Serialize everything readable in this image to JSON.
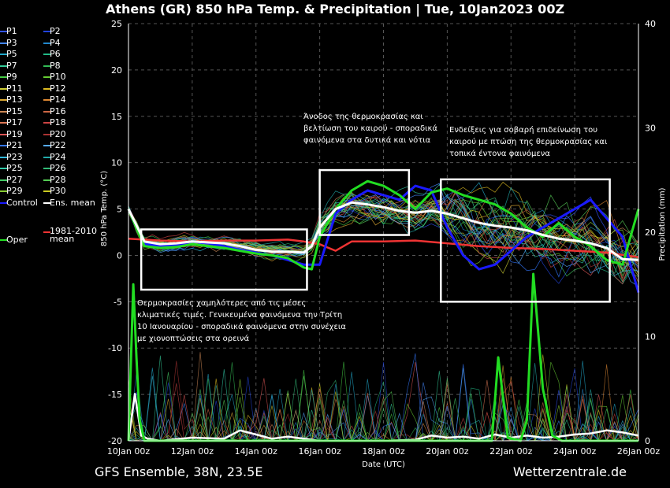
{
  "title": "Athens  (GR)  850 hPa Temp. & Precipitation | Tue, 10Jan2023 00Z",
  "footer": {
    "left": "GFS Ensemble, 38N, 23.5E",
    "right": "Wetterzentrale.de"
  },
  "colors": {
    "background": "#000000",
    "control": "#1a1aff",
    "ens_mean": "#ffffff",
    "oper": "#22dd22",
    "climate_mean": "#ee3333",
    "box": "#ffffff"
  },
  "legend": [
    {
      "label": "P1",
      "color": "#3355ff"
    },
    {
      "label": "P2",
      "color": "#2244dd"
    },
    {
      "label": "P3",
      "color": "#4488ff"
    },
    {
      "label": "P4",
      "color": "#2288cc"
    },
    {
      "label": "P5",
      "color": "#22aacc"
    },
    {
      "label": "P6",
      "color": "#22bb88"
    },
    {
      "label": "P7",
      "color": "#33cc99"
    },
    {
      "label": "P8",
      "color": "#33bb55"
    },
    {
      "label": "P9",
      "color": "#44cc44"
    },
    {
      "label": "P10",
      "color": "#66cc33"
    },
    {
      "label": "P11",
      "color": "#cccc33"
    },
    {
      "label": "P12",
      "color": "#ddbb22"
    },
    {
      "label": "P13",
      "color": "#ddaa33"
    },
    {
      "label": "P14",
      "color": "#dd8833"
    },
    {
      "label": "P15",
      "color": "#cc8855"
    },
    {
      "label": "P16",
      "color": "#cc6644"
    },
    {
      "label": "P17",
      "color": "#dd7755"
    },
    {
      "label": "P18",
      "color": "#cc4444"
    },
    {
      "label": "P19",
      "color": "#dd5555"
    },
    {
      "label": "P20",
      "color": "#aa3333"
    },
    {
      "label": "P21",
      "color": "#3377ff"
    },
    {
      "label": "P22",
      "color": "#55aaff"
    },
    {
      "label": "P23",
      "color": "#33bbdd"
    },
    {
      "label": "P24",
      "color": "#22aaaa"
    },
    {
      "label": "P25",
      "color": "#33ccaa"
    },
    {
      "label": "P26",
      "color": "#33bb77"
    },
    {
      "label": "P27",
      "color": "#44cc66"
    },
    {
      "label": "P28",
      "color": "#55cc55"
    },
    {
      "label": "P29",
      "color": "#88cc33"
    },
    {
      "label": "P30",
      "color": "#cccc22"
    },
    {
      "label": "Control",
      "color": "#1a1aff"
    },
    {
      "label": "Ens. mean",
      "color": "#ffffff"
    },
    {
      "label": "1981-2010 mean",
      "color": "#ee3333"
    },
    {
      "label": "Oper",
      "color": "#22dd22"
    }
  ],
  "annotations": [
    {
      "text": "Θερμοκρασίες χαμηλότερες από τις μέσες κλιματικές τιμές. Γενικευμένα φαινόμενα την Τρίτη 10 Ιανουαρίου - σποραδικά φαινόμενα στην συνέχεια με χιονοπτώσεις στα ορεινά"
    },
    {
      "text": "Άνοδος της θερμοκρασίας και βελτίωση του καιρού - σποραδικά φαινόμενα στα δυτικά και νότια"
    },
    {
      "text": "Ενδείξεις για σοβαρή επιδείνωση του καιρού με πτώση της θερμοκρασίας και τοπικά έντονα φαινόμενα"
    }
  ],
  "chart_data": {
    "type": "line",
    "xlabel": "Date (UTC)",
    "ylabel": "850 hPa Temp. (°C)",
    "y2label": "Precipitation (mm)",
    "ylim": [
      -20,
      25
    ],
    "y2lim": [
      0,
      40
    ],
    "yticks": [
      -20,
      -15,
      -10,
      -5,
      0,
      5,
      10,
      15,
      20,
      25
    ],
    "y2ticks": [
      0,
      10,
      20,
      30,
      40
    ],
    "x_range_days": [
      0,
      16
    ],
    "xticks": [
      {
        "day": 0,
        "label": "10Jan 00z"
      },
      {
        "day": 2,
        "label": "12Jan 00z"
      },
      {
        "day": 4,
        "label": "14Jan 00z"
      },
      {
        "day": 6,
        "label": "16Jan 00z"
      },
      {
        "day": 8,
        "label": "18Jan 00z"
      },
      {
        "day": 10,
        "label": "20Jan 00z"
      },
      {
        "day": 12,
        "label": "22Jan 00z"
      },
      {
        "day": 14,
        "label": "24Jan 00z"
      },
      {
        "day": 16,
        "label": "26Jan 00z"
      }
    ],
    "grid": true,
    "temperature_series": {
      "ens_mean": {
        "x": [
          0,
          0.5,
          1,
          1.5,
          2,
          2.5,
          3,
          3.5,
          4,
          4.5,
          5,
          5.5,
          5.75,
          6,
          6.5,
          7,
          7.5,
          8,
          8.5,
          9,
          9.5,
          10,
          10.5,
          11,
          11.5,
          12,
          12.5,
          13,
          13.5,
          14,
          14.5,
          15,
          15.5,
          16
        ],
        "y": [
          5,
          1.5,
          1.2,
          1.3,
          1.5,
          1.4,
          1.3,
          1.0,
          0.6,
          0.4,
          0.4,
          0.3,
          1.0,
          3.0,
          5.0,
          5.7,
          5.5,
          5.2,
          4.8,
          4.6,
          4.8,
          4.5,
          4.0,
          3.5,
          3.2,
          3.0,
          2.7,
          2.2,
          1.8,
          1.6,
          1.3,
          0.8,
          -0.4,
          -0.5
        ]
      },
      "control": {
        "x": [
          0,
          0.5,
          1,
          1.5,
          2,
          2.5,
          3,
          3.5,
          4,
          4.5,
          5,
          5.5,
          6,
          6.5,
          7,
          7.5,
          8,
          8.5,
          9,
          9.5,
          10,
          10.5,
          11,
          11.5,
          12,
          12.5,
          13,
          13.5,
          14,
          14.5,
          15,
          15.5,
          16
        ],
        "y": [
          5,
          1.2,
          1.0,
          1.1,
          1.5,
          1.3,
          1.0,
          0.6,
          0.3,
          0,
          -0.5,
          -1.0,
          -1.0,
          4.5,
          6.0,
          7.0,
          6.5,
          6.0,
          7.5,
          7.0,
          3.0,
          0,
          -1.5,
          -1.0,
          0.5,
          2.0,
          3.0,
          4.0,
          5.0,
          6.0,
          4.0,
          2.0,
          -4.0
        ]
      },
      "oper": {
        "x": [
          0,
          0.5,
          1,
          1.5,
          2,
          2.5,
          3,
          3.5,
          4,
          4.5,
          5,
          5.5,
          5.75,
          6,
          6.5,
          7,
          7.5,
          8,
          8.5,
          9,
          9.5,
          10,
          10.5,
          11,
          11.5,
          12,
          12.5,
          13,
          13.5,
          14,
          14.5,
          15,
          15.5,
          16
        ],
        "y": [
          5,
          1.0,
          0.8,
          0.9,
          1.2,
          1.0,
          0.8,
          0.5,
          0.2,
          0,
          -0.3,
          -1.3,
          -1.5,
          2.0,
          5.0,
          7.0,
          8.0,
          7.5,
          6.5,
          5.0,
          6.8,
          7.2,
          6.5,
          6.0,
          5.5,
          4.5,
          3.0,
          2.0,
          3.5,
          2.0,
          1.0,
          -0.5,
          -1.0,
          5.0
        ]
      },
      "climate_mean": {
        "x": [
          0,
          1,
          2,
          3,
          4,
          5,
          5.5,
          6,
          6.5,
          7,
          8,
          9,
          10,
          11,
          12,
          13,
          14,
          15,
          16
        ],
        "y": [
          1.8,
          1.6,
          1.5,
          1.6,
          1.6,
          1.7,
          1.5,
          1.2,
          0.5,
          1.5,
          1.5,
          1.6,
          1.3,
          1.0,
          0.8,
          0.7,
          0.5,
          0.3,
          -0.2
        ]
      }
    },
    "precipitation_series": {
      "oper": {
        "x": [
          0,
          0.15,
          0.25,
          0.35,
          0.5,
          1,
          3,
          4,
          6,
          10,
          11,
          11.4,
          11.6,
          11.9,
          12.3,
          12.5,
          12.7,
          13.0,
          13.3,
          13.6,
          14,
          16
        ],
        "y": [
          0,
          15,
          8,
          2,
          0,
          0,
          0,
          0,
          0,
          0,
          0,
          0,
          8,
          0.3,
          0,
          2,
          16,
          5,
          0.5,
          0,
          0,
          0
        ]
      },
      "ens_mean": {
        "x": [
          0,
          0.2,
          0.4,
          0.6,
          1,
          2,
          3,
          3.5,
          4,
          4.5,
          5,
          5.5,
          6,
          8,
          9,
          9.5,
          10,
          10.5,
          11,
          11.5,
          12,
          12.5,
          13,
          13.5,
          14,
          14.5,
          15,
          15.5,
          16
        ],
        "y": [
          0,
          4.5,
          0.5,
          0.2,
          0,
          0.3,
          0.2,
          1.0,
          0.6,
          0.2,
          0.4,
          0.2,
          0,
          0,
          0.1,
          0.5,
          0.3,
          0.4,
          0.2,
          0.6,
          0.3,
          0.5,
          0.3,
          0.4,
          0.6,
          0.7,
          1.0,
          0.8,
          0.5
        ]
      }
    },
    "boxes": [
      {
        "x": [
          0.4,
          5.6
        ],
        "y": [
          -3.7,
          2.8
        ]
      },
      {
        "x": [
          6.0,
          8.8
        ],
        "y": [
          2.2,
          9.2
        ]
      },
      {
        "x": [
          9.8,
          15.1
        ],
        "y": [
          -5.0,
          8.2
        ]
      }
    ]
  }
}
